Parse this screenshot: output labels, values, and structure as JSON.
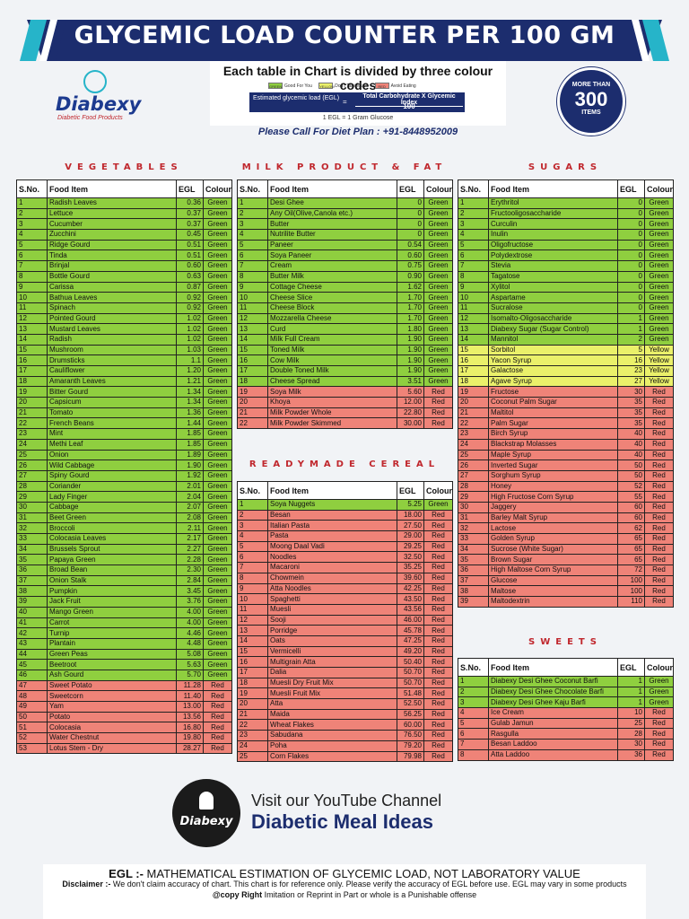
{
  "banner": {
    "title": "GLYCEMIC LOAD COUNTER  PER 100 GM",
    "accent": "#26b4c9",
    "navy": "#1c2d6e"
  },
  "logo": {
    "name": "Diabexy",
    "tagline": "Diabetic Food Products"
  },
  "codes": {
    "title": "Each table in Chart is divided by three colour codes",
    "legend": [
      {
        "code": "GREEN",
        "text": "Good For You",
        "color": "#8fcf3f"
      },
      {
        "code": "YELLOW",
        "text": "Don't Take Much",
        "color": "#eaf06a"
      },
      {
        "code": "RED",
        "text": "Avoid Eating",
        "color": "#ef8378"
      }
    ],
    "formula_left": "Estimated glycemic load (EGL)",
    "formula_eq": "=",
    "formula_num": "Total Carbohydrate  X  Glycemic Index",
    "formula_den": "100",
    "note": "1 EGL = 1 Gram Glucose"
  },
  "call": "Please Call For Diet Plan :  +91-8448952009",
  "badge": {
    "top": "MORE THAN",
    "num": "300",
    "bottom": "ITEMS"
  },
  "headers": {
    "sno": "S.No.",
    "food": "Food Item",
    "egl": "EGL",
    "colour": "Colour"
  },
  "vegetables": {
    "title": "VEGETABLES",
    "rows": [
      [
        "1",
        "Radish Leaves",
        "0.36",
        "Green"
      ],
      [
        "2",
        "Lettuce",
        "0.37",
        "Green"
      ],
      [
        "3",
        "Cucumber",
        "0.37",
        "Green"
      ],
      [
        "4",
        "Zucchini",
        "0.45",
        "Green"
      ],
      [
        "5",
        "Ridge Gourd",
        "0.51",
        "Green"
      ],
      [
        "6",
        "Tinda",
        "0.51",
        "Green"
      ],
      [
        "7",
        "Brinjal",
        "0.60",
        "Green"
      ],
      [
        "8",
        "Bottle Gourd",
        "0.63",
        "Green"
      ],
      [
        "9",
        "Carissa",
        "0.87",
        "Green"
      ],
      [
        "10",
        "Bathua Leaves",
        "0.92",
        "Green"
      ],
      [
        "11",
        "Spinach",
        "0.92",
        "Green"
      ],
      [
        "12",
        "Pointed Gourd",
        "1.02",
        "Green"
      ],
      [
        "13",
        "Mustard Leaves",
        "1.02",
        "Green"
      ],
      [
        "14",
        "Radish",
        "1.02",
        "Green"
      ],
      [
        "15",
        "Mushroom",
        "1.03",
        "Green"
      ],
      [
        "16",
        "Drumsticks",
        "1.1",
        "Green"
      ],
      [
        "17",
        "Cauliflower",
        "1.20",
        "Green"
      ],
      [
        "18",
        "Amaranth Leaves",
        "1.21",
        "Green"
      ],
      [
        "19",
        "Bitter Gourd",
        "1.34",
        "Green"
      ],
      [
        "20",
        "Capsicum",
        "1.34",
        "Green"
      ],
      [
        "21",
        "Tomato",
        "1.36",
        "Green"
      ],
      [
        "22",
        "French Beans",
        "1.44",
        "Green"
      ],
      [
        "23",
        "Mint",
        "1.85",
        "Green"
      ],
      [
        "24",
        "Methi Leaf",
        "1.85",
        "Green"
      ],
      [
        "25",
        "Onion",
        "1.89",
        "Green"
      ],
      [
        "26",
        "Wild Cabbage",
        "1.90",
        "Green"
      ],
      [
        "27",
        "Spiny Gourd",
        "1.92",
        "Green"
      ],
      [
        "28",
        "Coriander",
        "2.01",
        "Green"
      ],
      [
        "29",
        "Lady Finger",
        "2.04",
        "Green"
      ],
      [
        "30",
        "Cabbage",
        "2.07",
        "Green"
      ],
      [
        "31",
        "Beet Green",
        "2.08",
        "Green"
      ],
      [
        "32",
        "Broccoli",
        "2.11",
        "Green"
      ],
      [
        "33",
        "Colocasia Leaves",
        "2.17",
        "Green"
      ],
      [
        "34",
        "Brussels Sprout",
        "2.27",
        "Green"
      ],
      [
        "35",
        "Papaya Green",
        "2.28",
        "Green"
      ],
      [
        "36",
        "Broad Bean",
        "2.30",
        "Green"
      ],
      [
        "37",
        "Onion Stalk",
        "2.84",
        "Green"
      ],
      [
        "38",
        "Pumpkin",
        "3.45",
        "Green"
      ],
      [
        "39",
        "Jack Fruit",
        "3.76",
        "Green"
      ],
      [
        "40",
        "Mango Green",
        "4.00",
        "Green"
      ],
      [
        "41",
        "Carrot",
        "4.00",
        "Green"
      ],
      [
        "42",
        "Turnip",
        "4.46",
        "Green"
      ],
      [
        "43",
        "Plantain",
        "4.48",
        "Green"
      ],
      [
        "44",
        "Green Peas",
        "5.08",
        "Green"
      ],
      [
        "45",
        "Beetroot",
        "5.63",
        "Green"
      ],
      [
        "46",
        "Ash Gourd",
        "5.70",
        "Green"
      ],
      [
        "47",
        "Sweet Potato",
        "11.28",
        "Red"
      ],
      [
        "48",
        "Sweetcorn",
        "11.40",
        "Red"
      ],
      [
        "49",
        "Yam",
        "13.00",
        "Red"
      ],
      [
        "50",
        "Potato",
        "13.56",
        "Red"
      ],
      [
        "51",
        "Colocasia",
        "16.80",
        "Red"
      ],
      [
        "52",
        "Water Chestnut",
        "19.80",
        "Red"
      ],
      [
        "53",
        "Lotus Stem - Dry",
        "28.27",
        "Red"
      ]
    ]
  },
  "milk": {
    "title": "MILK PRODUCT & FAT",
    "rows": [
      [
        "1",
        "Desi Ghee",
        "0",
        "Green"
      ],
      [
        "2",
        "Any Oil(Olive,Canola etc.)",
        "0",
        "Green"
      ],
      [
        "3",
        "Butter",
        "0",
        "Green"
      ],
      [
        "4",
        "Nutrilite Butter",
        "0",
        "Green"
      ],
      [
        "5",
        "Paneer",
        "0.54",
        "Green"
      ],
      [
        "6",
        "Soya Paneer",
        "0.60",
        "Green"
      ],
      [
        "7",
        "Cream",
        "0.75",
        "Green"
      ],
      [
        "8",
        "Butter Milk",
        "0.90",
        "Green"
      ],
      [
        "9",
        "Cottage Cheese",
        "1.62",
        "Green"
      ],
      [
        "10",
        "Cheese Slice",
        "1.70",
        "Green"
      ],
      [
        "11",
        "Cheese Block",
        "1.70",
        "Green"
      ],
      [
        "12",
        "Mozzarella Cheese",
        "1.70",
        "Green"
      ],
      [
        "13",
        "Curd",
        "1.80",
        "Green"
      ],
      [
        "14",
        "Milk Full Cream",
        "1.90",
        "Green"
      ],
      [
        "15",
        "Toned Milk",
        "1.90",
        "Green"
      ],
      [
        "16",
        "Cow Milk",
        "1.90",
        "Green"
      ],
      [
        "17",
        "Double Toned Milk",
        "1.90",
        "Green"
      ],
      [
        "18",
        "Cheese Spread",
        "3.51",
        "Green"
      ],
      [
        "19",
        "Soya Milk",
        "5.60",
        "Red"
      ],
      [
        "20",
        "Khoya",
        "12.00",
        "Red"
      ],
      [
        "21",
        "Milk Powder Whole",
        "22.80",
        "Red"
      ],
      [
        "22",
        "Milk Powder Skimmed",
        "30.00",
        "Red"
      ]
    ]
  },
  "cereal": {
    "title": "READYMADE CEREAL",
    "rows": [
      [
        "1",
        "Soya Nuggets",
        "5.25",
        "Green"
      ],
      [
        "2",
        "Besan",
        "18.00",
        "Red"
      ],
      [
        "3",
        "Italian Pasta",
        "27.50",
        "Red"
      ],
      [
        "4",
        "Pasta",
        "29.00",
        "Red"
      ],
      [
        "5",
        "Moong Daal Vadi",
        "29.25",
        "Red"
      ],
      [
        "6",
        "Noodles",
        "32.50",
        "Red"
      ],
      [
        "7",
        "Macaroni",
        "35.25",
        "Red"
      ],
      [
        "8",
        "Chowmein",
        "39.60",
        "Red"
      ],
      [
        "9",
        "Atta Noodles",
        "42.25",
        "Red"
      ],
      [
        "10",
        "Spaghetti",
        "43.50",
        "Red"
      ],
      [
        "11",
        "Muesli",
        "43.56",
        "Red"
      ],
      [
        "12",
        "Sooji",
        "46.00",
        "Red"
      ],
      [
        "13",
        "Porridge",
        "45.78",
        "Red"
      ],
      [
        "14",
        "Oats",
        "47.25",
        "Red"
      ],
      [
        "15",
        "Vermicelli",
        "49.20",
        "Red"
      ],
      [
        "16",
        "Multigrain Atta",
        "50.40",
        "Red"
      ],
      [
        "17",
        "Dalia",
        "50.70",
        "Red"
      ],
      [
        "18",
        "Muesli Dry Fruit Mix",
        "50.70",
        "Red"
      ],
      [
        "19",
        "Muesli Fruit Mix",
        "51.48",
        "Red"
      ],
      [
        "20",
        "Atta",
        "52.50",
        "Red"
      ],
      [
        "21",
        "Maida",
        "56.25",
        "Red"
      ],
      [
        "22",
        "Wheat Flakes",
        "60.00",
        "Red"
      ],
      [
        "23",
        "Sabudana",
        "76.50",
        "Red"
      ],
      [
        "24",
        "Poha",
        "79.20",
        "Red"
      ],
      [
        "25",
        "Corn Flakes",
        "79.98",
        "Red"
      ]
    ]
  },
  "sugars": {
    "title": "SUGARS",
    "rows": [
      [
        "1",
        "Erythritol",
        "0",
        "Green"
      ],
      [
        "2",
        "Fructooligosaccharide",
        "0",
        "Green"
      ],
      [
        "3",
        "Curculin",
        "0",
        "Green"
      ],
      [
        "4",
        "Inulin",
        "0",
        "Green"
      ],
      [
        "5",
        "Oligofructose",
        "0",
        "Green"
      ],
      [
        "6",
        "Polydextrose",
        "0",
        "Green"
      ],
      [
        "7",
        "Stevia",
        "0",
        "Green"
      ],
      [
        "8",
        "Tagatose",
        "0",
        "Green"
      ],
      [
        "9",
        "Xylitol",
        "0",
        "Green"
      ],
      [
        "10",
        "Aspartame",
        "0",
        "Green"
      ],
      [
        "11",
        "Sucralose",
        "0",
        "Green"
      ],
      [
        "12",
        "Isomalto-Oligosaccharide",
        "1",
        "Green"
      ],
      [
        "13",
        "Diabexy Sugar (Sugar Control)",
        "1",
        "Green"
      ],
      [
        "14",
        "Mannitol",
        "2",
        "Green"
      ],
      [
        "15",
        "Sorbitol",
        "5",
        "Yellow"
      ],
      [
        "16",
        "Yacon Syrup",
        "16",
        "Yellow"
      ],
      [
        "17",
        "Galactose",
        "23",
        "Yellow"
      ],
      [
        "18",
        "Agave Syrup",
        "27",
        "Yellow"
      ],
      [
        "19",
        "Fructose",
        "30",
        "Red"
      ],
      [
        "20",
        "Coconut Palm Sugar",
        "35",
        "Red"
      ],
      [
        "21",
        "Maltitol",
        "35",
        "Red"
      ],
      [
        "22",
        "Palm Sugar",
        "35",
        "Red"
      ],
      [
        "23",
        "Birch Syrup",
        "40",
        "Red"
      ],
      [
        "24",
        "Blackstrap Molasses",
        "40",
        "Red"
      ],
      [
        "25",
        "Maple Syrup",
        "40",
        "Red"
      ],
      [
        "26",
        "Inverted Sugar",
        "50",
        "Red"
      ],
      [
        "27",
        "Sorghum Syrup",
        "50",
        "Red"
      ],
      [
        "28",
        "Honey",
        "52",
        "Red"
      ],
      [
        "29",
        "High Fructose Corn Syrup",
        "55",
        "Red"
      ],
      [
        "30",
        "Jaggery",
        "60",
        "Red"
      ],
      [
        "31",
        "Barley Malt Syrup",
        "60",
        "Red"
      ],
      [
        "32",
        "Lactose",
        "62",
        "Red"
      ],
      [
        "33",
        "Golden Syrup",
        "65",
        "Red"
      ],
      [
        "34",
        "Sucrose (White Sugar)",
        "65",
        "Red"
      ],
      [
        "35",
        "Brown Sugar",
        "65",
        "Red"
      ],
      [
        "36",
        "High Maltose Corn Syrup",
        "72",
        "Red"
      ],
      [
        "37",
        "Glucose",
        "100",
        "Red"
      ],
      [
        "38",
        "Maltose",
        "100",
        "Red"
      ],
      [
        "39",
        "Maltodextrin",
        "110",
        "Red"
      ]
    ]
  },
  "sweets": {
    "title": "SWEETS",
    "rows": [
      [
        "1",
        "Diabexy Desi Ghee Coconut Barfi",
        "1",
        "Green"
      ],
      [
        "2",
        "Diabexy Desi Ghee Chocolate Barfi",
        "1",
        "Green"
      ],
      [
        "3",
        "Diabexy Desi Ghee Kaju Barfi",
        "1",
        "Green"
      ],
      [
        "4",
        "Ice Cream",
        "10",
        "Red"
      ],
      [
        "5",
        "Gulab Jamun",
        "25",
        "Red"
      ],
      [
        "6",
        "Rasgulla",
        "28",
        "Red"
      ],
      [
        "7",
        "Besan Laddoo",
        "30",
        "Red"
      ],
      [
        "8",
        "Atta Laddoo",
        "36",
        "Red"
      ]
    ]
  },
  "youtube": {
    "logo": "Diabexy",
    "line1": "Visit our YouTube Channel",
    "line2": "Diabetic Meal Ideas"
  },
  "footer": {
    "egl_label": "EGL :-",
    "egl_text": " MATHEMATICAL ESTIMATION OF GLYCEMIC LOAD, NOT LABORATORY VALUE",
    "disc_label": "Disclaimer :-",
    "disc_text": " We don't claim accuracy of chart. This chart is for reference only. Please verify the accuracy of EGL before use. EGL may vary in some products",
    "copy_label": "@copy Right",
    "copy_text": " Imitation or Reprint in Part or whole is a Punishable offense"
  }
}
